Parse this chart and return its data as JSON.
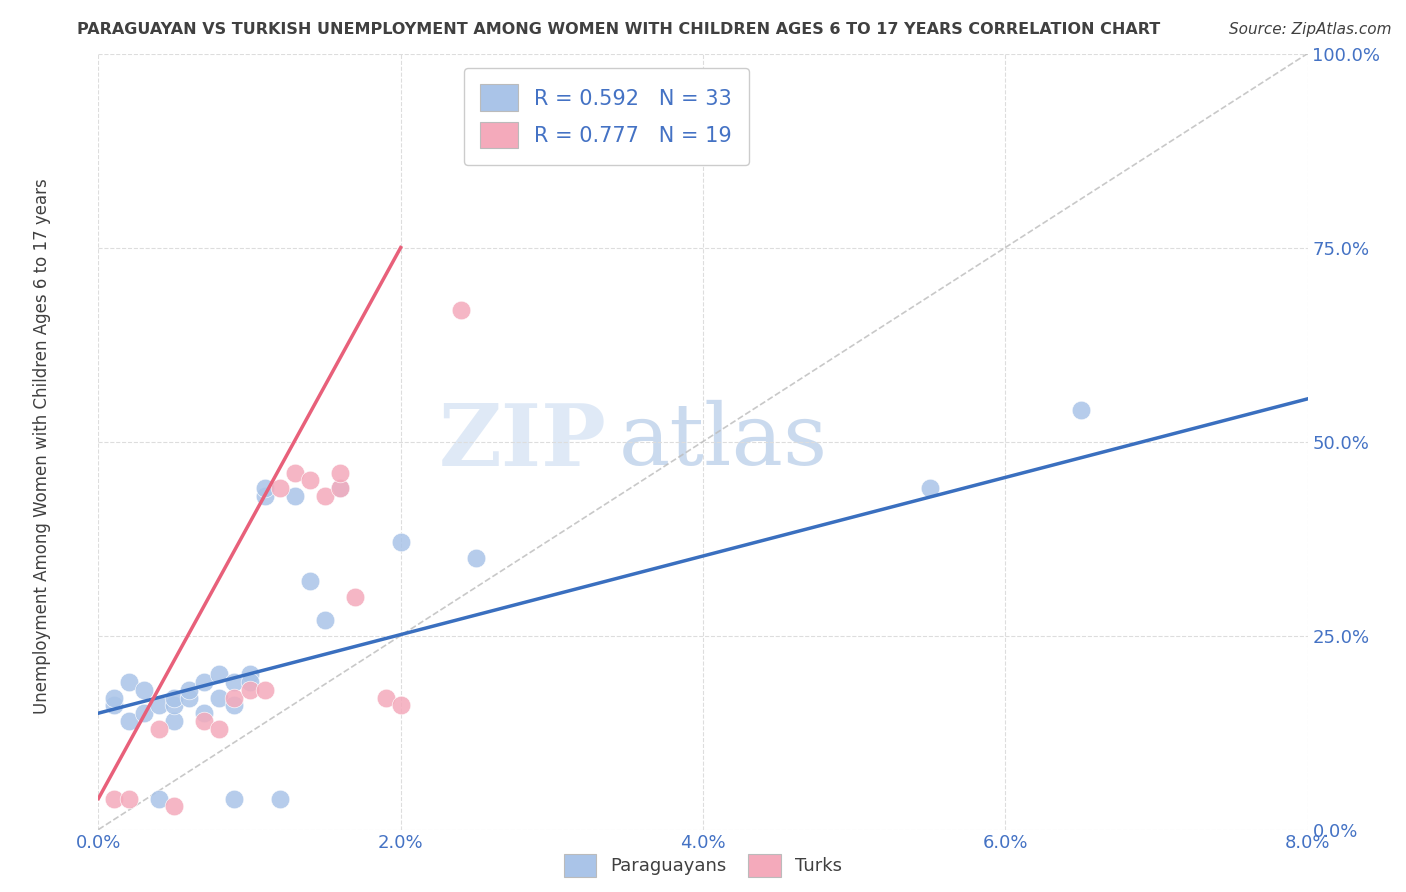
{
  "title": "PARAGUAYAN VS TURKISH UNEMPLOYMENT AMONG WOMEN WITH CHILDREN AGES 6 TO 17 YEARS CORRELATION CHART",
  "source": "Source: ZipAtlas.com",
  "ylabel": "Unemployment Among Women with Children Ages 6 to 17 years",
  "xlim": [
    0.0,
    0.08
  ],
  "ylim": [
    0.0,
    1.0
  ],
  "xticks": [
    0.0,
    0.02,
    0.04,
    0.06,
    0.08
  ],
  "xtick_labels": [
    "0.0%",
    "2.0%",
    "4.0%",
    "6.0%",
    "8.0%"
  ],
  "yticks": [
    0.0,
    0.25,
    0.5,
    0.75,
    1.0
  ],
  "ytick_labels": [
    "0.0%",
    "25.0%",
    "50.0%",
    "75.0%",
    "100.0%"
  ],
  "blue_color": "#aac4e8",
  "pink_color": "#f4aabb",
  "blue_line_color": "#3a6fbf",
  "pink_line_color": "#e8607a",
  "blue_R": 0.592,
  "blue_N": 33,
  "pink_R": 0.777,
  "pink_N": 19,
  "blue_points_x": [
    0.001,
    0.001,
    0.002,
    0.002,
    0.003,
    0.003,
    0.004,
    0.004,
    0.005,
    0.005,
    0.005,
    0.006,
    0.006,
    0.007,
    0.007,
    0.008,
    0.008,
    0.009,
    0.009,
    0.009,
    0.01,
    0.01,
    0.011,
    0.011,
    0.012,
    0.013,
    0.014,
    0.015,
    0.016,
    0.02,
    0.025,
    0.055,
    0.065
  ],
  "blue_points_y": [
    0.16,
    0.17,
    0.14,
    0.19,
    0.15,
    0.18,
    0.04,
    0.16,
    0.14,
    0.16,
    0.17,
    0.17,
    0.18,
    0.15,
    0.19,
    0.17,
    0.2,
    0.04,
    0.16,
    0.19,
    0.2,
    0.19,
    0.43,
    0.44,
    0.04,
    0.43,
    0.32,
    0.27,
    0.44,
    0.37,
    0.35,
    0.44,
    0.54
  ],
  "pink_points_x": [
    0.001,
    0.002,
    0.004,
    0.005,
    0.007,
    0.008,
    0.009,
    0.01,
    0.011,
    0.012,
    0.013,
    0.014,
    0.015,
    0.016,
    0.016,
    0.017,
    0.019,
    0.02,
    0.024
  ],
  "pink_points_y": [
    0.04,
    0.04,
    0.13,
    0.03,
    0.14,
    0.13,
    0.17,
    0.18,
    0.18,
    0.44,
    0.46,
    0.45,
    0.43,
    0.44,
    0.46,
    0.3,
    0.17,
    0.16,
    0.67
  ],
  "blue_line_x0": 0.0,
  "blue_line_y0": 0.15,
  "blue_line_x1": 0.08,
  "blue_line_y1": 0.555,
  "pink_line_x0": 0.0,
  "pink_line_y0": 0.04,
  "pink_line_x1": 0.02,
  "pink_line_y1": 0.75,
  "diag_line_color": "#bbbbbb",
  "watermark_zip": "ZIP",
  "watermark_atlas": "atlas",
  "background_color": "#ffffff",
  "grid_color": "#dddddd",
  "text_color_blue": "#4472c4",
  "title_color": "#404040",
  "legend_text_color": "#404040"
}
